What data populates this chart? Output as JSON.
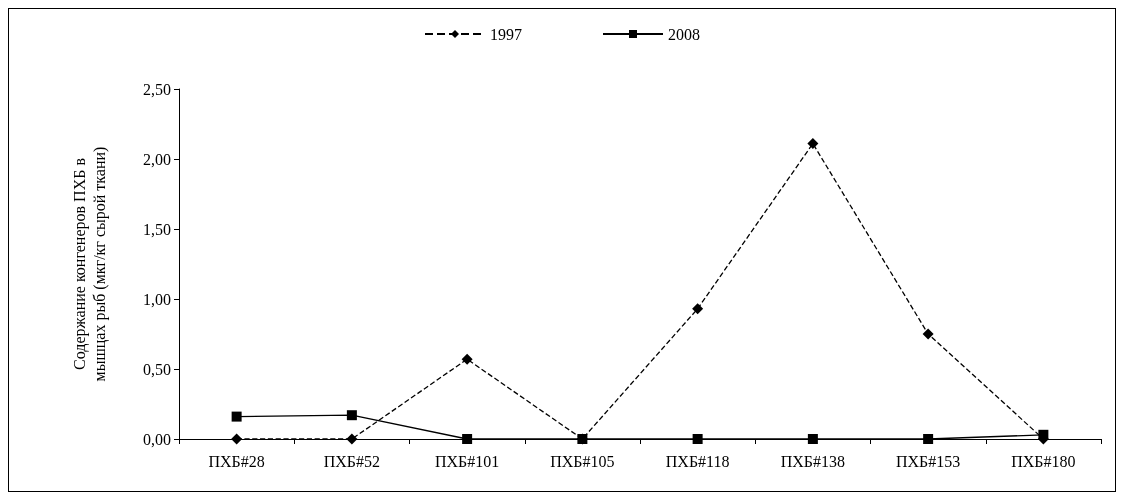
{
  "chart_data": {
    "type": "line",
    "ylabel": "Содержание конгенеров ПХБ в мышцах рыб (мкг/кг сырой ткани)",
    "categories": [
      "ПХБ#28",
      "ПХБ#52",
      "ПХБ#101",
      "ПХБ#105",
      "ПХБ#118",
      "ПХБ#138",
      "ПХБ#153",
      "ПХБ#180"
    ],
    "series": [
      {
        "name": "1997",
        "color": "#000000",
        "marker": "diamond",
        "line_style": "dashed",
        "values": [
          0,
          0,
          0.57,
          0,
          0.93,
          2.11,
          0.75,
          0
        ]
      },
      {
        "name": "2008",
        "color": "#000000",
        "marker": "square",
        "line_style": "solid",
        "values": [
          0.16,
          0.17,
          0,
          0,
          0,
          0,
          0,
          0.03
        ]
      }
    ],
    "ylim": [
      0,
      2.5
    ],
    "yticks": [
      {
        "value": 0,
        "label": "0,00"
      },
      {
        "value": 0.5,
        "label": "0,50"
      },
      {
        "value": 1,
        "label": "1,00"
      },
      {
        "value": 1.5,
        "label": "1,50"
      },
      {
        "value": 2,
        "label": "2,00"
      },
      {
        "value": 2.5,
        "label": "2,50"
      }
    ],
    "grid": false,
    "legend": "top"
  }
}
